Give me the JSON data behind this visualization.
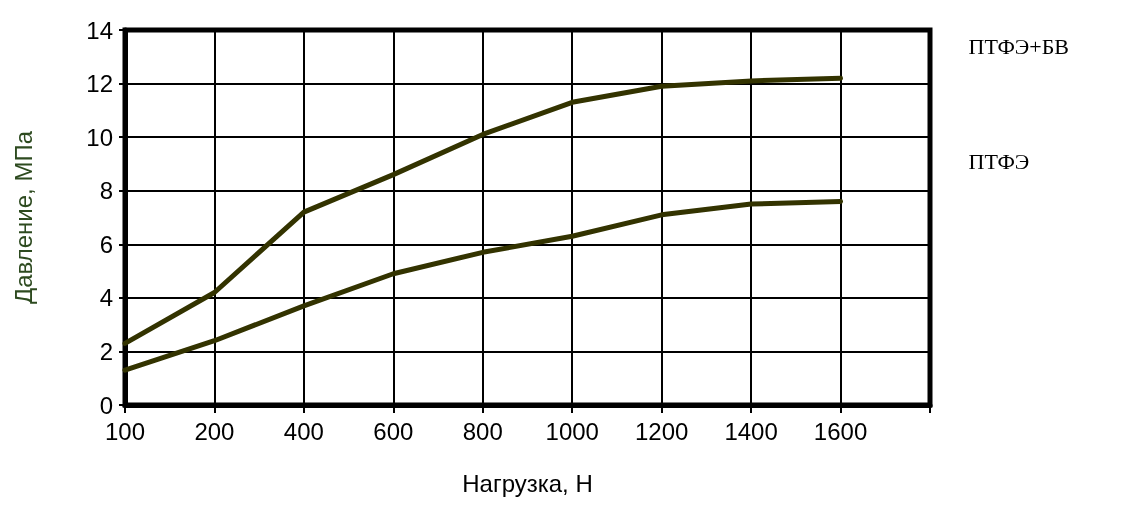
{
  "chart_data": {
    "type": "line",
    "xlabel": "Нагрузка, Н",
    "ylabel": "Давление, МПа",
    "categories": [
      "100",
      "200",
      "400",
      "600",
      "800",
      "1000",
      "1200",
      "1400",
      "1600",
      null
    ],
    "series": [
      {
        "name": "ПТФЭ+БВ",
        "color": "#333300",
        "values": [
          2.3,
          4.2,
          7.2,
          8.6,
          10.1,
          11.3,
          11.9,
          12.1,
          12.2,
          null
        ]
      },
      {
        "name": "ПТФЭ",
        "color": "#333300",
        "values": [
          1.3,
          2.4,
          3.7,
          4.9,
          5.7,
          6.3,
          7.1,
          7.5,
          7.6,
          null
        ]
      }
    ],
    "ylim": [
      0,
      14
    ],
    "yticks": [
      0,
      2,
      4,
      6,
      8,
      10,
      12,
      14
    ],
    "grid": true,
    "marker": "none",
    "line_style": "solid"
  }
}
